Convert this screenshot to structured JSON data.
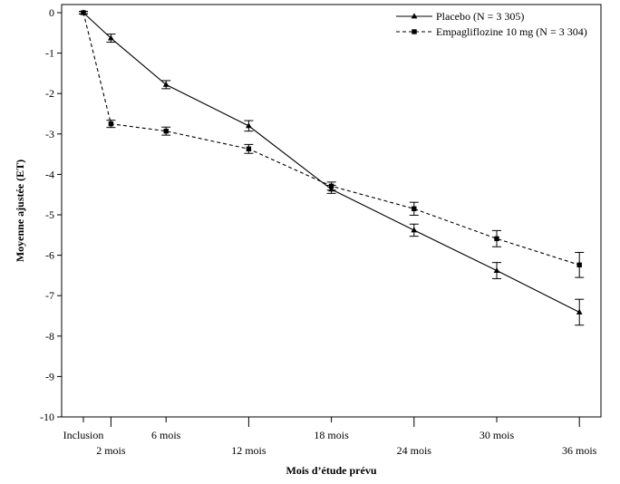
{
  "chart_data": {
    "type": "line",
    "xlabel": "Mois d’étude prévu",
    "ylabel": "Moyenne ajustée (ET)",
    "ylim": [
      -10,
      0
    ],
    "yticks": [
      0,
      -1,
      -2,
      -3,
      -4,
      -5,
      -6,
      -7,
      -8,
      -9,
      -10
    ],
    "x_ticks": [
      {
        "month": 0,
        "label": "Inclusion",
        "row": 1
      },
      {
        "month": 2,
        "label": "2 mois",
        "row": 2
      },
      {
        "month": 6,
        "label": "6 mois",
        "row": 1
      },
      {
        "month": 12,
        "label": "12 mois",
        "row": 2
      },
      {
        "month": 18,
        "label": "18 mois",
        "row": 1
      },
      {
        "month": 24,
        "label": "24 mois",
        "row": 2
      },
      {
        "month": 30,
        "label": "30 mois",
        "row": 1
      },
      {
        "month": 36,
        "label": "36 mois",
        "row": 2
      }
    ],
    "legend_position": "top-right",
    "series": [
      {
        "name": "Placebo (N = 3 305)",
        "line_style": "solid",
        "marker": "triangle",
        "color": "#000000",
        "x": [
          0,
          2,
          6,
          12,
          18,
          24,
          30,
          36
        ],
        "y": [
          0.0,
          -0.63,
          -1.78,
          -2.8,
          -4.37,
          -5.38,
          -6.38,
          -7.41
        ],
        "err": [
          0.03,
          0.1,
          0.1,
          0.13,
          0.1,
          0.15,
          0.2,
          0.32
        ]
      },
      {
        "name": "Empagliflozine 10 mg (N = 3 304)",
        "line_style": "dashed",
        "marker": "square",
        "color": "#000000",
        "x": [
          0,
          2,
          6,
          12,
          18,
          24,
          30,
          36
        ],
        "y": [
          0.0,
          -2.75,
          -2.93,
          -3.37,
          -4.29,
          -4.85,
          -5.59,
          -6.24
        ],
        "err": [
          0.03,
          0.09,
          0.1,
          0.11,
          0.1,
          0.16,
          0.2,
          0.31
        ]
      }
    ]
  }
}
